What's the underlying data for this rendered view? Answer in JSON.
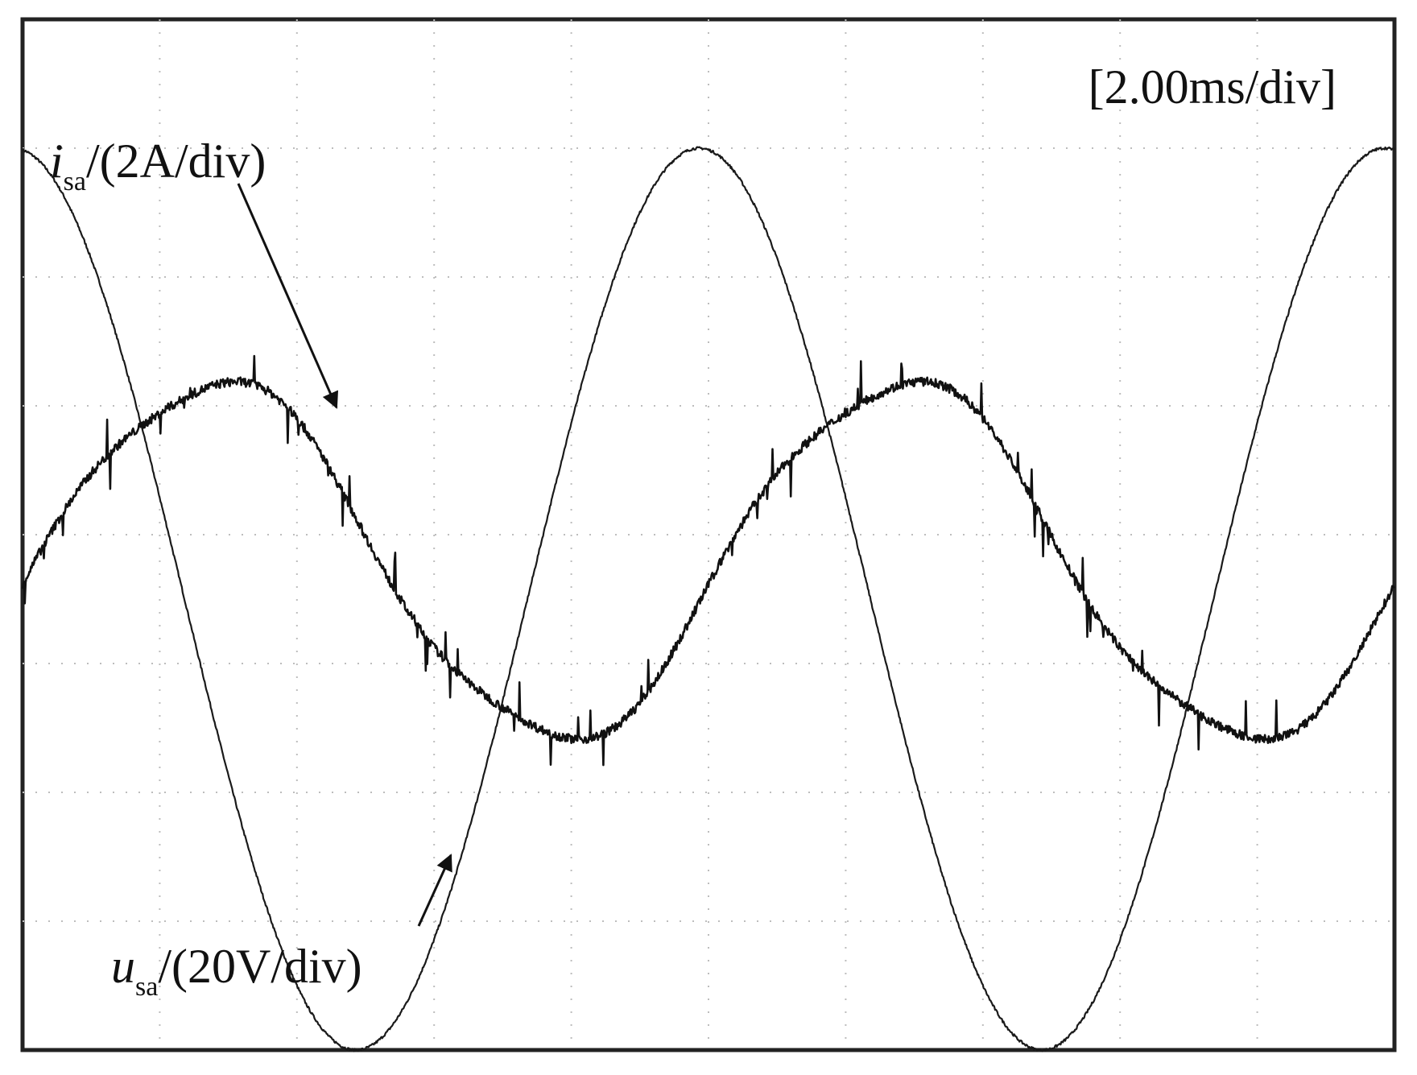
{
  "chart_data": {
    "type": "line",
    "title": "",
    "timebase_label": "[2.00ms/div]",
    "grid": true,
    "divisions": {
      "x": 8,
      "y": 10
    },
    "series": [
      {
        "symbol": "u",
        "subscript": "sa",
        "scale": "/(20V/div)",
        "label": "u_sa/(20V/div)",
        "color": "#1a1a1a",
        "frequency_hz": 100,
        "amplitude_div": 3.5,
        "offset_div": -0.5,
        "phase_deg": 95,
        "noise": "low"
      },
      {
        "symbol": "i",
        "subscript": "sa",
        "scale": "/(2A/div)",
        "label": "i_sa/(2A/div)",
        "color": "#111111",
        "frequency_hz": 100,
        "amplitude_div": 1.4,
        "offset_div": -0.2,
        "phase_deg": -10,
        "noise": "high"
      }
    ],
    "annotations": [
      {
        "text": "i_sa/(2A/div)",
        "points_to": "current waveform peak",
        "arrow": true
      },
      {
        "text": "u_sa/(20V/div)",
        "points_to": "voltage waveform trough",
        "arrow": true
      }
    ]
  }
}
